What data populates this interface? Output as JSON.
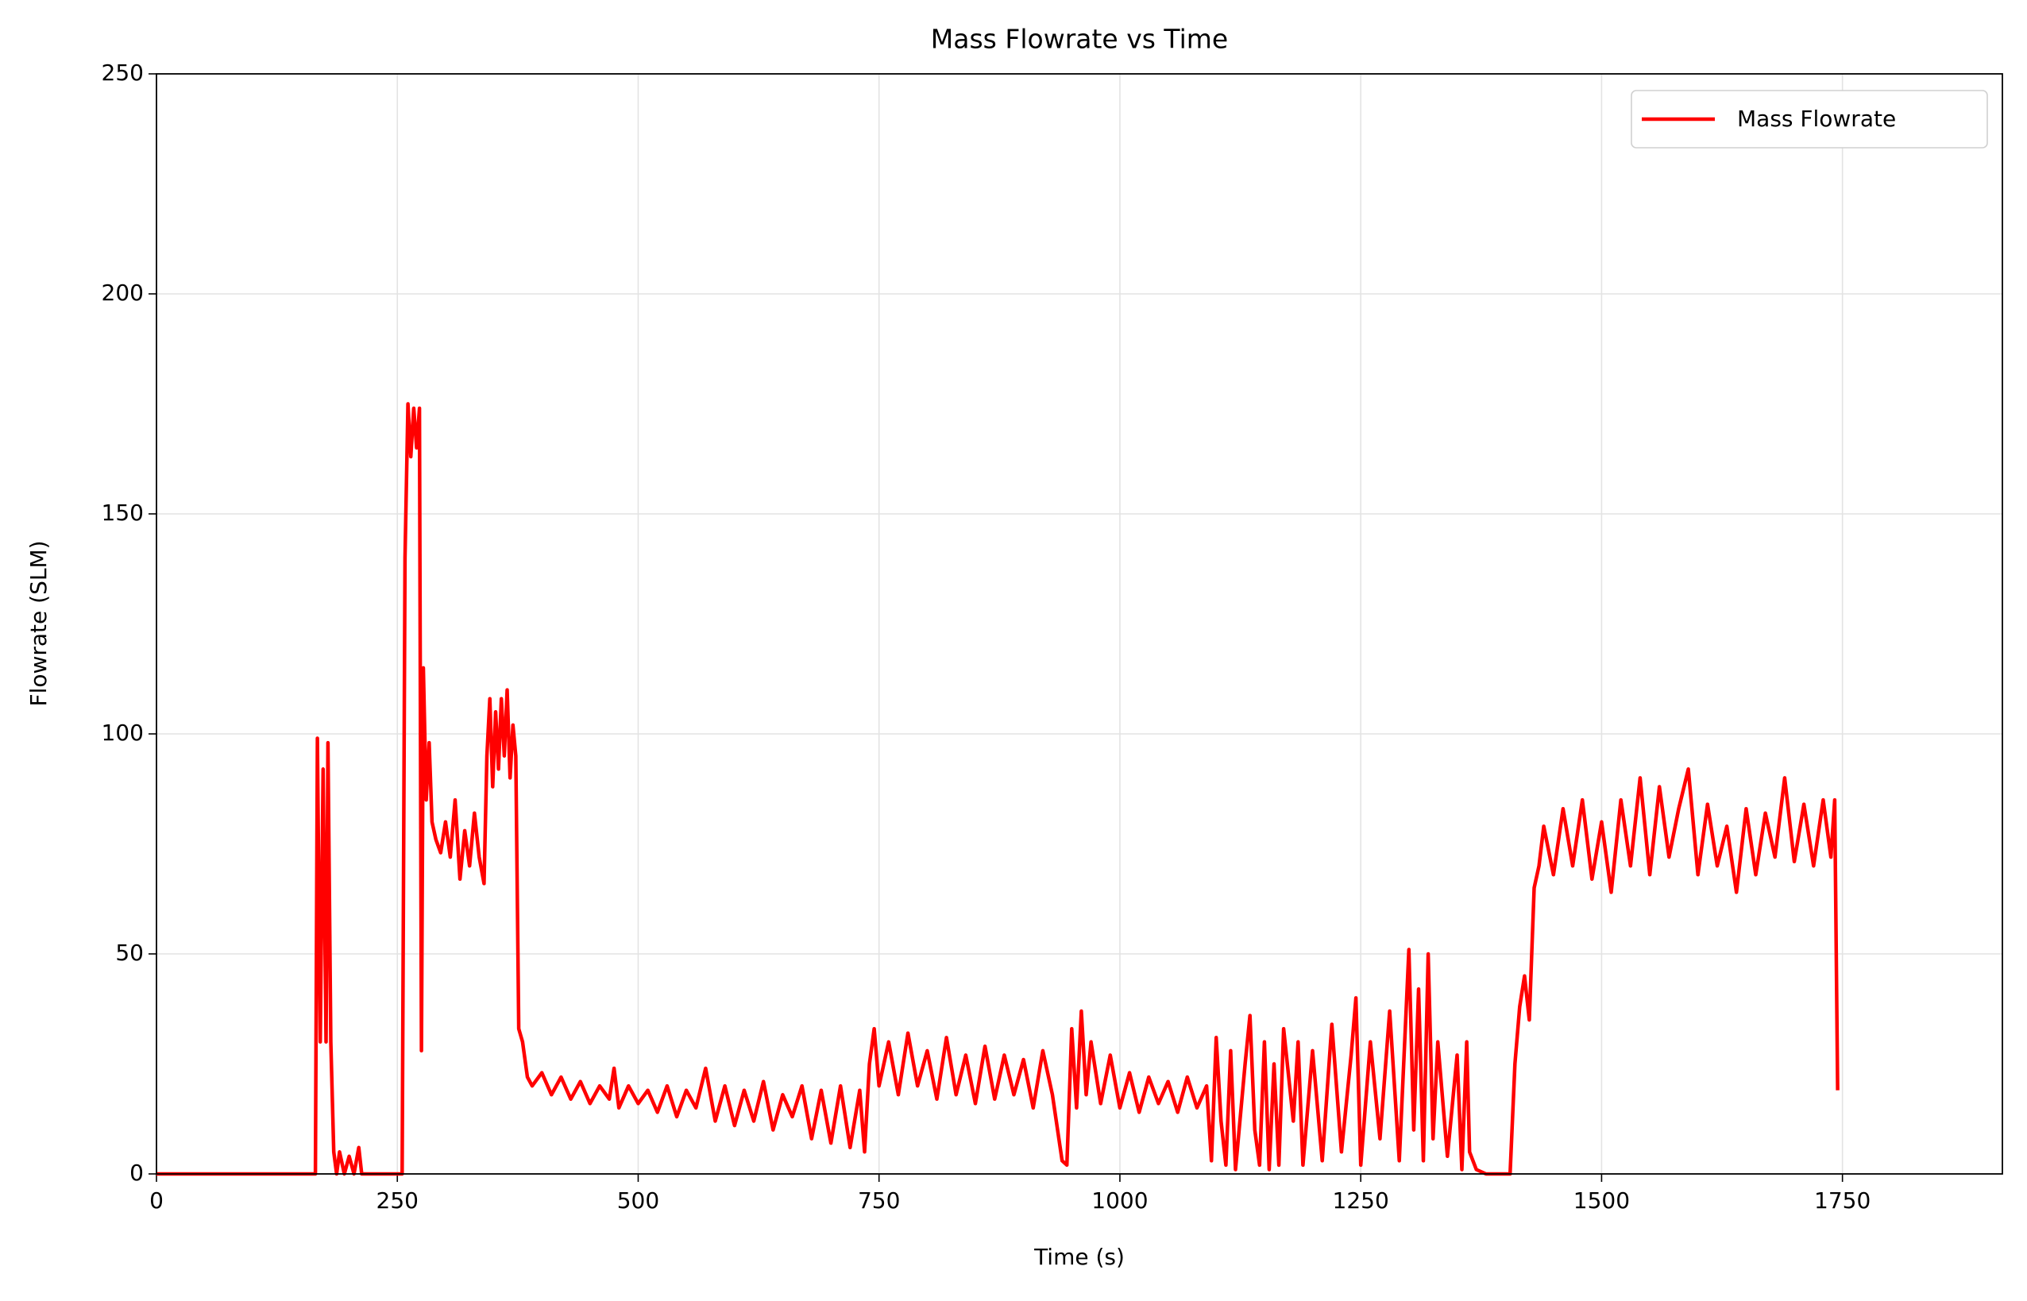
{
  "chart_data": {
    "type": "line",
    "title": "Mass Flowrate vs Time",
    "xlabel": "Time (s)",
    "ylabel": "Flowrate (SLM)",
    "xlim": [
      0,
      1916
    ],
    "ylim": [
      0,
      250
    ],
    "xticks": [
      0,
      250,
      500,
      750,
      1000,
      1250,
      1500,
      1750
    ],
    "yticks": [
      0,
      50,
      100,
      150,
      200,
      250
    ],
    "grid": true,
    "legend": "upper right",
    "x": [
      0,
      165,
      167,
      170,
      173,
      176,
      178,
      181,
      184,
      187,
      190,
      195,
      200,
      205,
      210,
      213,
      255,
      258,
      261,
      264,
      267,
      270,
      273,
      275,
      277,
      280,
      283,
      286,
      290,
      295,
      300,
      305,
      310,
      315,
      320,
      325,
      330,
      335,
      340,
      343,
      346,
      349,
      352,
      355,
      358,
      361,
      364,
      367,
      370,
      373,
      376,
      380,
      385,
      390,
      400,
      410,
      420,
      430,
      440,
      450,
      460,
      470,
      475,
      480,
      490,
      500,
      510,
      520,
      530,
      540,
      550,
      560,
      570,
      580,
      590,
      600,
      610,
      620,
      630,
      640,
      650,
      660,
      670,
      680,
      690,
      700,
      710,
      720,
      730,
      735,
      740,
      745,
      750,
      760,
      770,
      780,
      790,
      800,
      810,
      820,
      830,
      840,
      850,
      860,
      870,
      880,
      890,
      900,
      910,
      920,
      930,
      940,
      945,
      950,
      955,
      960,
      965,
      970,
      980,
      990,
      1000,
      1010,
      1020,
      1030,
      1040,
      1050,
      1060,
      1070,
      1080,
      1090,
      1095,
      1100,
      1105,
      1110,
      1115,
      1120,
      1130,
      1135,
      1140,
      1145,
      1150,
      1155,
      1160,
      1165,
      1170,
      1180,
      1185,
      1190,
      1200,
      1210,
      1220,
      1230,
      1240,
      1245,
      1250,
      1260,
      1270,
      1280,
      1290,
      1300,
      1305,
      1310,
      1315,
      1320,
      1325,
      1330,
      1340,
      1350,
      1355,
      1360,
      1363,
      1370,
      1380,
      1405,
      1410,
      1415,
      1420,
      1425,
      1430,
      1435,
      1440,
      1450,
      1460,
      1470,
      1480,
      1490,
      1500,
      1510,
      1520,
      1530,
      1540,
      1550,
      1560,
      1570,
      1580,
      1590,
      1600,
      1610,
      1620,
      1630,
      1640,
      1650,
      1660,
      1670,
      1680,
      1690,
      1700,
      1710,
      1720,
      1730,
      1738,
      1742,
      1745
    ],
    "series": [
      {
        "name": "Mass Flowrate",
        "color": "#ff0000",
        "values": [
          0,
          0,
          99,
          30,
          92,
          30,
          98,
          30,
          5,
          0,
          5,
          0,
          4,
          0,
          6,
          0,
          0,
          140,
          175,
          163,
          174,
          165,
          174,
          28,
          115,
          85,
          98,
          80,
          76,
          73,
          80,
          72,
          85,
          67,
          78,
          70,
          82,
          72,
          66,
          95,
          108,
          88,
          105,
          92,
          108,
          95,
          110,
          90,
          102,
          95,
          33,
          30,
          22,
          20,
          23,
          18,
          22,
          17,
          21,
          16,
          20,
          17,
          24,
          15,
          20,
          16,
          19,
          14,
          20,
          13,
          19,
          15,
          24,
          12,
          20,
          11,
          19,
          12,
          21,
          10,
          18,
          13,
          20,
          8,
          19,
          7,
          20,
          6,
          19,
          5,
          25,
          33,
          20,
          30,
          18,
          32,
          20,
          28,
          17,
          31,
          18,
          27,
          16,
          29,
          17,
          27,
          18,
          26,
          15,
          28,
          18,
          3,
          2,
          33,
          15,
          37,
          18,
          30,
          16,
          27,
          15,
          23,
          14,
          22,
          16,
          21,
          14,
          22,
          15,
          20,
          3,
          31,
          12,
          2,
          28,
          1,
          25,
          36,
          10,
          2,
          30,
          1,
          25,
          2,
          33,
          12,
          30,
          2,
          28,
          3,
          34,
          5,
          27,
          40,
          2,
          30,
          8,
          37,
          3,
          51,
          10,
          42,
          3,
          50,
          8,
          30,
          4,
          27,
          1,
          30,
          5,
          1,
          0,
          0,
          25,
          38,
          45,
          35,
          65,
          70,
          79,
          68,
          83,
          70,
          85,
          67,
          80,
          64,
          85,
          70,
          90,
          68,
          88,
          72,
          83,
          92,
          68,
          84,
          70,
          79,
          64,
          83,
          68,
          82,
          72,
          90,
          71,
          84,
          70,
          85,
          72,
          85,
          19
        ]
      }
    ]
  }
}
